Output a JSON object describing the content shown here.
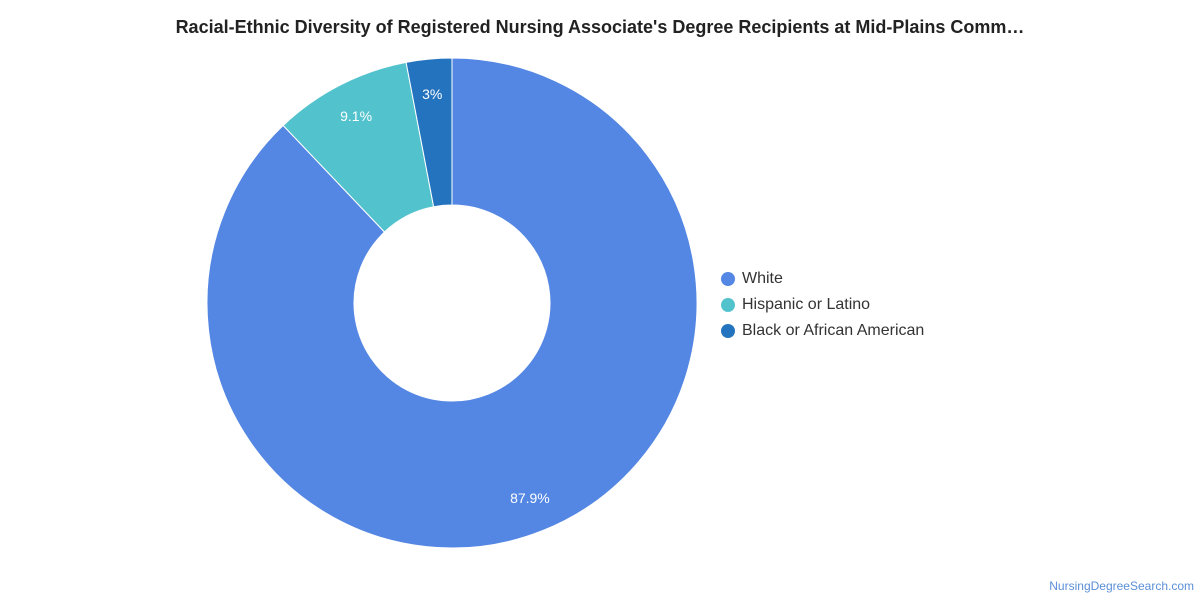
{
  "chart_data": {
    "type": "pie",
    "title": "Racial-Ethnic Diversity of Registered Nursing Associate's Degree Recipients at Mid-Plains Comm…",
    "categories": [
      "White",
      "Hispanic or Latino",
      "Black or African American"
    ],
    "values": [
      87.9,
      9.1,
      3.0
    ],
    "data_labels": [
      "87.9%",
      "9.1%",
      "3%"
    ],
    "colors": [
      "#5486e3",
      "#52c3cd",
      "#2473bf"
    ],
    "donut": true,
    "legend_position": "right"
  },
  "source": "NursingDegreeSearch.com"
}
